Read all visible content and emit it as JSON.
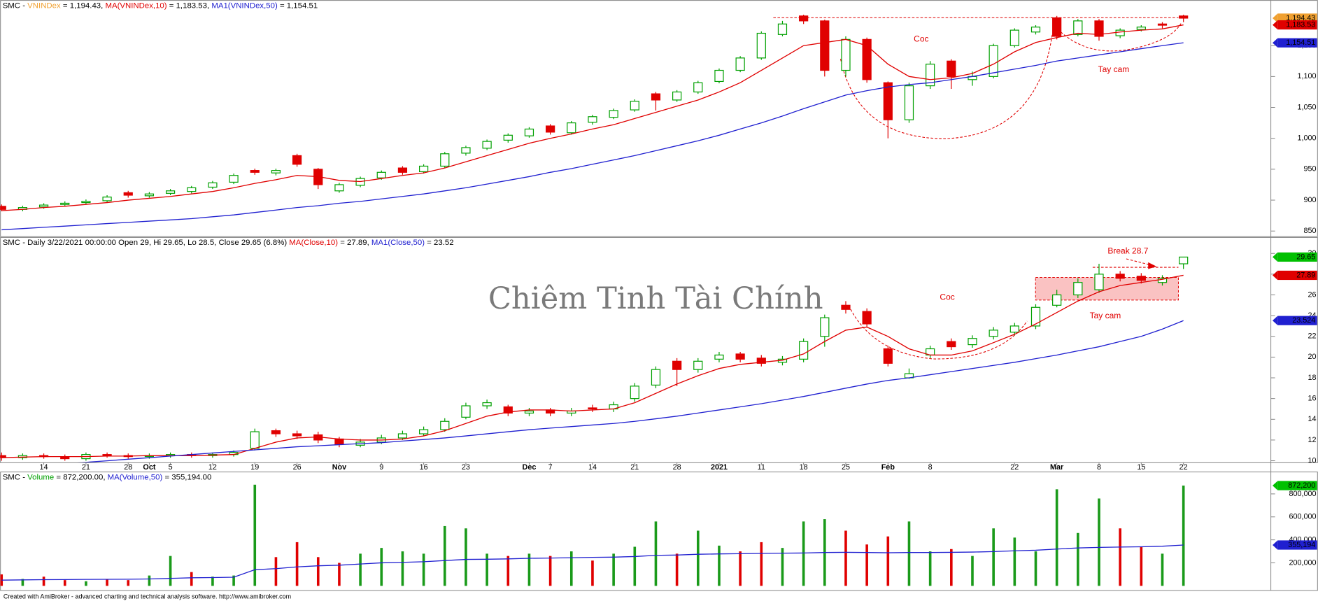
{
  "chart_data": [
    {
      "type": "candlestick",
      "title_segments": [
        {
          "text": "SMC - ",
          "color": "#000000"
        },
        {
          "text": "VNINDex",
          "color": "#f0a030"
        },
        {
          "text": " = 1,194.43, ",
          "color": "#000000"
        },
        {
          "text": "MA(VNINDex,10)",
          "color": "#e00000"
        },
        {
          "text": " = 1,183.53, ",
          "color": "#000000"
        },
        {
          "text": "MA1(VNINDex,50)",
          "color": "#2020d0"
        },
        {
          "text": " = 1,154.51",
          "color": "#000000"
        }
      ],
      "open": [
        890,
        885,
        889,
        893,
        896,
        899,
        912,
        907,
        911,
        914,
        921,
        929,
        948,
        944,
        972,
        950,
        915,
        924,
        936,
        952,
        946,
        955,
        976,
        984,
        997,
        1004,
        1020,
        1009,
        1026,
        1034,
        1046,
        1072,
        1062,
        1075,
        1092,
        1110,
        1130,
        1168,
        1198,
        1190,
        1110,
        1160,
        1090,
        1030,
        1085,
        1125,
        1095,
        1100,
        1150,
        1172,
        1195,
        1168,
        1190,
        1166,
        1176,
        1185,
        1198
      ],
      "high": [
        893,
        891,
        895,
        898,
        901,
        908,
        915,
        913,
        918,
        923,
        931,
        943,
        951,
        951,
        975,
        952,
        928,
        938,
        948,
        955,
        958,
        978,
        988,
        998,
        1008,
        1018,
        1023,
        1028,
        1038,
        1048,
        1063,
        1075,
        1078,
        1093,
        1113,
        1133,
        1173,
        1190,
        1200,
        1192,
        1165,
        1163,
        1092,
        1090,
        1125,
        1128,
        1108,
        1153,
        1178,
        1183,
        1198,
        1193,
        1193,
        1178,
        1183,
        1188,
        1200
      ],
      "low": [
        882,
        882,
        886,
        890,
        893,
        896,
        904,
        904,
        908,
        911,
        918,
        926,
        941,
        940,
        954,
        918,
        912,
        921,
        933,
        941,
        943,
        952,
        972,
        981,
        993,
        1001,
        1006,
        1006,
        1022,
        1031,
        1043,
        1045,
        1059,
        1072,
        1089,
        1107,
        1127,
        1165,
        1185,
        1100,
        1100,
        1090,
        1000,
        1025,
        1080,
        1080,
        1085,
        1097,
        1147,
        1168,
        1160,
        1165,
        1158,
        1162,
        1173,
        1178,
        1188
      ],
      "close": [
        885,
        888,
        892,
        895,
        898,
        905,
        908,
        910,
        915,
        920,
        928,
        940,
        945,
        948,
        958,
        925,
        925,
        935,
        945,
        945,
        955,
        975,
        985,
        995,
        1005,
        1015,
        1010,
        1025,
        1035,
        1045,
        1060,
        1062,
        1075,
        1090,
        1110,
        1130,
        1170,
        1185,
        1190,
        1110,
        1160,
        1095,
        1030,
        1085,
        1120,
        1100,
        1100,
        1150,
        1175,
        1180,
        1165,
        1190,
        1165,
        1175,
        1180,
        1183,
        1194.43
      ],
      "up_color": "#00a000",
      "down_color": "#e00000",
      "series": [
        {
          "color": "#e00000",
          "values": [
            883,
            885,
            888,
            890,
            893,
            896,
            900,
            903,
            906,
            910,
            914,
            920,
            927,
            933,
            940,
            938,
            932,
            930,
            935,
            940,
            944,
            952,
            962,
            972,
            982,
            992,
            1000,
            1007,
            1015,
            1022,
            1032,
            1042,
            1052,
            1062,
            1075,
            1090,
            1110,
            1130,
            1150,
            1155,
            1160,
            1150,
            1120,
            1100,
            1095,
            1098,
            1105,
            1120,
            1140,
            1155,
            1163,
            1170,
            1168,
            1172,
            1175,
            1177,
            1183.53
          ]
        },
        {
          "color": "#2020d0",
          "values": [
            852,
            854,
            856,
            858,
            860,
            862,
            864,
            866,
            868,
            870,
            873,
            876,
            880,
            884,
            888,
            891,
            895,
            898,
            902,
            906,
            910,
            915,
            920,
            926,
            932,
            938,
            945,
            951,
            958,
            965,
            972,
            980,
            988,
            996,
            1005,
            1015,
            1025,
            1036,
            1048,
            1059,
            1070,
            1077,
            1083,
            1087,
            1090,
            1095,
            1100,
            1106,
            1112,
            1118,
            1125,
            1130,
            1135,
            1140,
            1145,
            1150,
            1154.51
          ]
        }
      ],
      "ylim": [
        843,
        1217
      ],
      "yticks": [
        {
          "value": 850,
          "label": "850"
        },
        {
          "value": 900,
          "label": "900"
        },
        {
          "value": 950,
          "label": "950"
        },
        {
          "value": 1000,
          "label": "1,000"
        },
        {
          "value": 1050,
          "label": "1,050"
        },
        {
          "value": 1100,
          "label": "1,100"
        },
        {
          "value": 1150,
          "label": "1,150"
        }
      ],
      "last_labels": [
        {
          "value": 1194.43,
          "label": "1,194.43",
          "color": "#f0a030"
        },
        {
          "value": 1183.53,
          "label": "1,183.53",
          "color": "#e00000"
        },
        {
          "value": 1154.51,
          "label": "1,154.51",
          "color": "#2020d0"
        }
      ],
      "annotations": [
        "Coc",
        "Tay cam"
      ]
    },
    {
      "type": "candlestick",
      "title_segments": [
        {
          "text": "SMC - Daily 3/22/2021 00:00:00 Open 29, Hi 29.65, Lo 28.5, Close 29.65 (6.8%) ",
          "color": "#000000"
        },
        {
          "text": "MA(Close,10)",
          "color": "#e00000"
        },
        {
          "text": " = 27.89, ",
          "color": "#000000"
        },
        {
          "text": "MA1(Close,50)",
          "color": "#2020d0"
        },
        {
          "text": " = 23.52",
          "color": "#000000"
        }
      ],
      "categories": [
        null,
        null,
        "14",
        null,
        "21",
        null,
        "28",
        "Oct",
        "5",
        null,
        "12",
        null,
        "19",
        null,
        "26",
        null,
        "Nov",
        null,
        "9",
        null,
        "16",
        null,
        "23",
        null,
        null,
        "Dec",
        "7",
        null,
        "14",
        null,
        "21",
        null,
        "28",
        null,
        "2021",
        null,
        "11",
        null,
        "18",
        null,
        "25",
        null,
        "Feb",
        null,
        "8",
        null,
        null,
        null,
        "22",
        null,
        "Mar",
        null,
        "8",
        null,
        "15",
        null,
        "22"
      ],
      "open": [
        10.5,
        10.3,
        10.5,
        10.4,
        10.2,
        10.6,
        10.5,
        10.4,
        10.5,
        10.6,
        10.5,
        10.6,
        11.2,
        12.9,
        12.6,
        12.5,
        12.1,
        11.5,
        11.8,
        12.2,
        12.6,
        13.0,
        14.2,
        15.3,
        15.2,
        14.6,
        14.9,
        14.6,
        15.1,
        15.0,
        16.0,
        17.3,
        19.6,
        18.8,
        19.8,
        20.3,
        19.9,
        19.5,
        19.8,
        22.0,
        25.0,
        24.4,
        20.8,
        18.0,
        20.2,
        21.5,
        21.2,
        22.0,
        22.4,
        23.0,
        25.0,
        26.0,
        26.5,
        28.0,
        27.8,
        27.2,
        29
      ],
      "high": [
        10.8,
        10.7,
        10.7,
        10.6,
        10.8,
        10.8,
        10.7,
        10.7,
        10.8,
        10.8,
        10.8,
        11.0,
        13.1,
        13.1,
        12.9,
        12.8,
        12.3,
        12.1,
        12.5,
        12.9,
        13.3,
        14.1,
        15.6,
        15.9,
        15.4,
        15.1,
        15.1,
        15.1,
        15.4,
        15.7,
        17.5,
        19.1,
        19.9,
        19.9,
        20.5,
        20.5,
        20.2,
        20.1,
        21.8,
        24.1,
        25.4,
        24.7,
        21.1,
        18.9,
        21.1,
        21.8,
        22.1,
        22.9,
        23.3,
        25.1,
        26.5,
        27.6,
        29.0,
        28.3,
        28.1,
        27.9,
        29.65
      ],
      "low": [
        10.0,
        10.1,
        10.2,
        10.0,
        10.0,
        10.3,
        10.2,
        10.2,
        10.3,
        10.3,
        10.3,
        10.4,
        11.0,
        12.3,
        12.1,
        11.7,
        11.3,
        11.3,
        11.6,
        12.0,
        12.4,
        12.8,
        14.0,
        15.0,
        14.3,
        14.3,
        14.3,
        14.3,
        14.7,
        14.7,
        15.7,
        17.0,
        17.2,
        18.5,
        19.5,
        19.5,
        19.1,
        19.2,
        19.5,
        21.0,
        24.2,
        22.9,
        19.1,
        17.9,
        19.9,
        20.7,
        20.9,
        21.7,
        22.1,
        22.7,
        24.8,
        25.7,
        26.2,
        27.3,
        27.1,
        26.9,
        28.5
      ],
      "close": [
        10.3,
        10.5,
        10.4,
        10.2,
        10.6,
        10.5,
        10.4,
        10.5,
        10.6,
        10.5,
        10.6,
        10.8,
        12.8,
        12.6,
        12.4,
        12.0,
        11.6,
        11.8,
        12.2,
        12.6,
        13.0,
        13.8,
        15.3,
        15.6,
        14.6,
        14.8,
        14.6,
        14.8,
        15.0,
        15.4,
        17.2,
        18.8,
        18.8,
        19.6,
        20.2,
        19.8,
        19.4,
        19.8,
        21.5,
        23.8,
        24.6,
        23.2,
        19.4,
        18.4,
        20.8,
        21.0,
        21.8,
        22.6,
        23.0,
        24.8,
        26.0,
        27.2,
        28.0,
        27.6,
        27.4,
        27.6,
        29.65
      ],
      "up_color": "#00a000",
      "down_color": "#e00000",
      "series": [
        {
          "color": "#e00000",
          "values": [
            10.3,
            10.35,
            10.4,
            10.4,
            10.4,
            10.45,
            10.45,
            10.5,
            10.5,
            10.5,
            10.55,
            10.6,
            11.2,
            11.8,
            12.2,
            12.3,
            12.1,
            12.0,
            12.0,
            12.1,
            12.4,
            12.9,
            13.6,
            14.3,
            14.7,
            14.9,
            14.9,
            14.8,
            14.9,
            15.0,
            15.6,
            16.5,
            17.4,
            18.2,
            18.9,
            19.3,
            19.5,
            19.7,
            20.3,
            21.5,
            22.6,
            22.9,
            22.0,
            20.8,
            20.2,
            20.2,
            20.6,
            21.4,
            22.2,
            23.2,
            24.3,
            25.4,
            26.3,
            26.9,
            27.2,
            27.5,
            27.89
          ]
        },
        {
          "color": "#2020d0",
          "values": [
            9.2,
            9.4,
            9.55,
            9.7,
            9.85,
            10.0,
            10.15,
            10.3,
            10.45,
            10.6,
            10.75,
            10.9,
            11.05,
            11.2,
            11.35,
            11.45,
            11.55,
            11.65,
            11.75,
            11.9,
            12.05,
            12.2,
            12.4,
            12.6,
            12.8,
            13.0,
            13.15,
            13.3,
            13.45,
            13.6,
            13.8,
            14.05,
            14.3,
            14.6,
            14.9,
            15.2,
            15.5,
            15.85,
            16.2,
            16.6,
            17.0,
            17.4,
            17.75,
            18.0,
            18.3,
            18.6,
            18.9,
            19.2,
            19.5,
            19.85,
            20.2,
            20.6,
            21.0,
            21.5,
            22.0,
            22.7,
            23.52
          ]
        }
      ],
      "ylim": [
        9.85,
        31.5
      ],
      "yticks": [
        10,
        12,
        14,
        16,
        18,
        20,
        22,
        24,
        26,
        28,
        30
      ],
      "last_labels": [
        {
          "value": 29.65,
          "label": "29.65",
          "color": "#00c000"
        },
        {
          "value": 27.89,
          "label": "27.89",
          "color": "#e00000"
        },
        {
          "value": 23.524,
          "label": "23.524",
          "color": "#2020d0"
        }
      ],
      "annotations": [
        "Break 28.7",
        "Coc",
        "Tay cam"
      ]
    },
    {
      "type": "bar",
      "title_segments": [
        {
          "text": "SMC - ",
          "color": "#000000"
        },
        {
          "text": "Volume",
          "color": "#00a000"
        },
        {
          "text": " = 872,200.00, ",
          "color": "#000000"
        },
        {
          "text": "MA(Volume,50)",
          "color": "#2020d0"
        },
        {
          "text": " = 355,194.00",
          "color": "#000000"
        }
      ],
      "values": [
        100000,
        60000,
        80000,
        50000,
        40000,
        60000,
        50000,
        90000,
        260000,
        120000,
        80000,
        90000,
        880000,
        250000,
        380000,
        250000,
        200000,
        280000,
        330000,
        300000,
        280000,
        520000,
        500000,
        280000,
        260000,
        280000,
        260000,
        300000,
        220000,
        280000,
        340000,
        560000,
        280000,
        480000,
        350000,
        300000,
        380000,
        330000,
        560000,
        580000,
        480000,
        360000,
        430000,
        560000,
        300000,
        320000,
        260000,
        500000,
        420000,
        300000,
        840000,
        460000,
        760000,
        500000,
        340000,
        280000,
        872200
      ],
      "up_color": "#1a9a1a",
      "down_color": "#e00000",
      "series": [
        {
          "color": "#2020d0",
          "values": [
            50000,
            52000,
            54000,
            55000,
            56000,
            57000,
            58000,
            60000,
            65000,
            70000,
            72000,
            75000,
            140000,
            150000,
            165000,
            175000,
            180000,
            190000,
            200000,
            205000,
            210000,
            220000,
            230000,
            232000,
            235000,
            240000,
            242000,
            245000,
            248000,
            250000,
            255000,
            265000,
            268000,
            275000,
            278000,
            280000,
            282000,
            284000,
            286000,
            290000,
            292000,
            290000,
            288000,
            290000,
            290000,
            292000,
            294000,
            298000,
            305000,
            310000,
            320000,
            330000,
            335000,
            338000,
            340000,
            345000,
            355194
          ]
        }
      ],
      "ylim": [
        -22000,
        987000
      ],
      "yticks": [
        {
          "value": 200000,
          "label": "200,000"
        },
        {
          "value": 400000,
          "label": "400,000"
        },
        {
          "value": 600000,
          "label": "600,000"
        },
        {
          "value": 800000,
          "label": "800,000"
        }
      ],
      "last_labels": [
        {
          "value": 872200,
          "label": "872,200",
          "color": "#00c000"
        },
        {
          "value": 355194,
          "label": "355,194",
          "color": "#2020d0"
        }
      ],
      "annotations": []
    }
  ],
  "watermark": "Chiêm Tinh Tài Chính",
  "footer": "Created with AmiBroker - advanced charting and technical analysis software. http://www.amibroker.com"
}
